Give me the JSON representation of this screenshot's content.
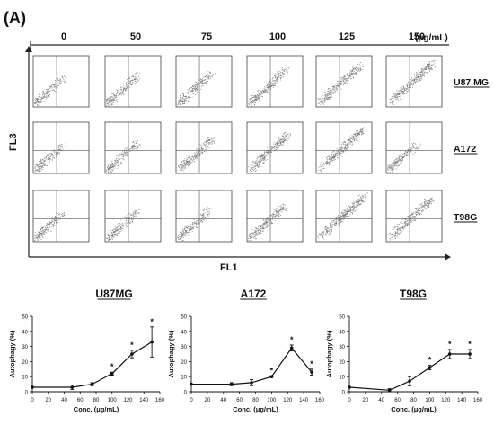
{
  "panel_label": "(A)",
  "flow": {
    "concentrations": [
      "0",
      "50",
      "75",
      "100",
      "125",
      "150"
    ],
    "unit": "(μg/mL)",
    "cell_lines": [
      "U87 MG",
      "A172",
      "T98G"
    ],
    "x_axis": "FL1",
    "y_axis": "FL3",
    "density": [
      [
        0.25,
        0.35,
        0.45,
        0.55,
        0.7,
        0.8
      ],
      [
        0.25,
        0.35,
        0.45,
        0.6,
        0.75,
        0.3
      ],
      [
        0.25,
        0.3,
        0.35,
        0.5,
        0.85,
        0.75
      ]
    ]
  },
  "chart_data": [
    {
      "type": "line",
      "title": "U87MG",
      "xlabel": "Conc. (μg/mL)",
      "ylabel": "Autophagy (%)",
      "xlim": [
        0,
        160
      ],
      "ylim": [
        0,
        50
      ],
      "xticks": [
        "0",
        "20",
        "40",
        "60",
        "80",
        "100",
        "120",
        "140",
        "160"
      ],
      "yticks": [
        "0",
        "10",
        "20",
        "30",
        "40",
        "50"
      ],
      "x": [
        0,
        50,
        75,
        100,
        125,
        150
      ],
      "y": [
        3,
        3,
        5,
        12,
        25,
        33
      ],
      "err": [
        0,
        1.5,
        1,
        1,
        2.5,
        10
      ],
      "sig": [
        false,
        false,
        false,
        true,
        true,
        true
      ],
      "sig_mark": "*"
    },
    {
      "type": "line",
      "title": "A172",
      "xlabel": "Conc. (μg/mL)",
      "ylabel": "Autophagy (%)",
      "xlim": [
        0,
        160
      ],
      "ylim": [
        0,
        50
      ],
      "xticks": [
        "0",
        "20",
        "40",
        "60",
        "80",
        "100",
        "120",
        "140",
        "160"
      ],
      "yticks": [
        "0",
        "10",
        "20",
        "30",
        "40",
        "50"
      ],
      "x": [
        0,
        50,
        75,
        100,
        125,
        150
      ],
      "y": [
        5,
        5,
        6,
        10,
        29,
        13
      ],
      "err": [
        0,
        1,
        2,
        0.5,
        2,
        2
      ],
      "sig": [
        false,
        false,
        false,
        true,
        true,
        true
      ],
      "sig_mark": "*"
    },
    {
      "type": "line",
      "title": "T98G",
      "xlabel": "Conc. (μg/mL)",
      "ylabel": "Autophagy (%)",
      "xlim": [
        0,
        160
      ],
      "ylim": [
        0,
        50
      ],
      "xticks": [
        "0",
        "20",
        "40",
        "60",
        "80",
        "100",
        "120",
        "140",
        "160"
      ],
      "yticks": [
        "0",
        "10",
        "20",
        "30",
        "40",
        "50"
      ],
      "x": [
        0,
        50,
        75,
        100,
        125,
        150
      ],
      "y": [
        3,
        1,
        7,
        16,
        25,
        25
      ],
      "err": [
        0,
        1,
        3,
        1.5,
        3,
        3
      ],
      "sig": [
        false,
        false,
        false,
        true,
        true,
        true
      ],
      "sig_mark": "*"
    }
  ]
}
